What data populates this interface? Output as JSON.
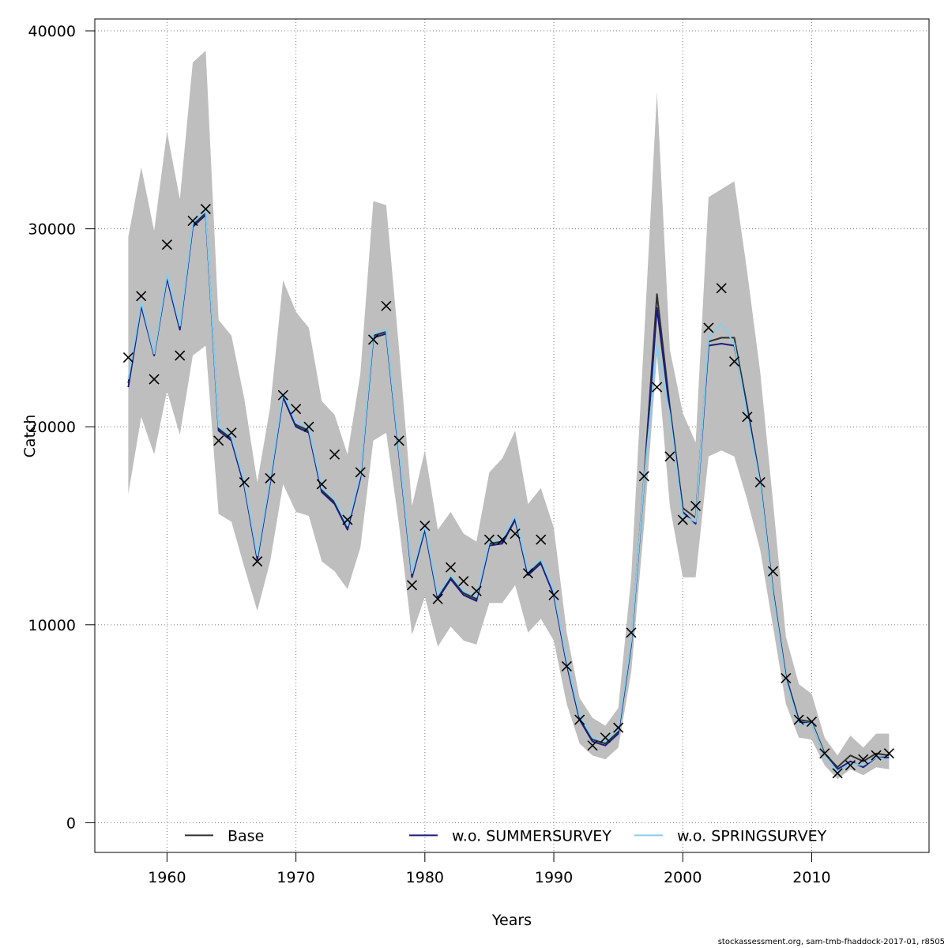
{
  "chart_data": {
    "type": "line",
    "xlabel": "Years",
    "ylabel": "Catch",
    "xlim": [
      1954.4,
      2019.1
    ],
    "ylim": [
      -1500,
      40600
    ],
    "x_ticks": [
      1960,
      1970,
      1980,
      1990,
      2000,
      2010
    ],
    "x_tick_labels": [
      "1960",
      "1970",
      "1980",
      "1990",
      "2000",
      "2010"
    ],
    "y_ticks": [
      0,
      10000,
      20000,
      30000,
      40000
    ],
    "y_tick_labels": [
      "0",
      "10000",
      "20000",
      "30000",
      "40000"
    ],
    "grid": true,
    "legend_position": "bottom",
    "colors": {
      "band": "#bebebe",
      "base": "#303030",
      "summer": "#1c1c7e",
      "spring": "#87ceeb",
      "observed": "#000000"
    },
    "years": [
      1957,
      1958,
      1959,
      1960,
      1961,
      1962,
      1963,
      1964,
      1965,
      1966,
      1967,
      1968,
      1969,
      1970,
      1971,
      1972,
      1973,
      1974,
      1975,
      1976,
      1977,
      1978,
      1979,
      1980,
      1981,
      1982,
      1983,
      1984,
      1985,
      1986,
      1987,
      1988,
      1989,
      1990,
      1991,
      1992,
      1993,
      1994,
      1995,
      1996,
      1997,
      1998,
      1999,
      2000,
      2001,
      2002,
      2003,
      2004,
      2005,
      2006,
      2007,
      2008,
      2009,
      2010,
      2011,
      2012,
      2013,
      2014,
      2015,
      2016
    ],
    "ci_upper": [
      29600,
      33100,
      29900,
      34900,
      31500,
      38400,
      39000,
      25400,
      24600,
      21400,
      17200,
      21000,
      27400,
      25800,
      25000,
      21300,
      20600,
      18600,
      22700,
      31400,
      31200,
      23900,
      16000,
      18800,
      14800,
      15700,
      14600,
      14200,
      17700,
      18400,
      19800,
      16100,
      16900,
      14900,
      9600,
      6300,
      5300,
      4900,
      5800,
      12400,
      24500,
      36900,
      23900,
      20700,
      19200,
      31600,
      32000,
      32400,
      27800,
      22800,
      16200,
      9400,
      7000,
      6500,
      4300,
      3400,
      4400,
      3800,
      4500,
      4500
    ],
    "ci_lower": [
      16600,
      20500,
      18600,
      21800,
      19600,
      23600,
      24100,
      15600,
      15200,
      12900,
      10700,
      13200,
      17100,
      15700,
      15500,
      13200,
      12700,
      11800,
      13900,
      19300,
      19700,
      15000,
      9500,
      11400,
      8900,
      9900,
      9200,
      9000,
      11100,
      11100,
      12000,
      9600,
      10300,
      9200,
      6000,
      4000,
      3400,
      3200,
      3800,
      7600,
      15000,
      23600,
      16000,
      12400,
      12400,
      18500,
      18800,
      18500,
      16300,
      13800,
      9900,
      6000,
      4300,
      4200,
      2900,
      2200,
      2700,
      2400,
      2800,
      2700
    ],
    "observed": [
      23500,
      26600,
      22400,
      29200,
      23600,
      30400,
      31000,
      19300,
      19700,
      17200,
      13200,
      17400,
      21600,
      20900,
      20000,
      17100,
      18600,
      15300,
      17700,
      24400,
      26100,
      19300,
      12000,
      15000,
      11300,
      12900,
      12200,
      11700,
      14300,
      14300,
      14600,
      12600,
      14300,
      11500,
      7900,
      5200,
      3900,
      4300,
      4800,
      9600,
      17500,
      22000,
      18500,
      15300,
      16000,
      25000,
      27000,
      23300,
      20500,
      17200,
      12700,
      7300,
      5200,
      5100,
      3500,
      2500,
      2900,
      3200,
      3400,
      3500
    ],
    "series": [
      {
        "name": "Base",
        "values": [
          22200,
          26200,
          23600,
          27600,
          25000,
          30200,
          30800,
          19900,
          19400,
          17100,
          13400,
          17300,
          21600,
          20100,
          19800,
          16800,
          16200,
          14900,
          17500,
          24600,
          24800,
          18700,
          12500,
          14900,
          11400,
          12400,
          11600,
          11300,
          14100,
          14200,
          15400,
          12600,
          13200,
          11600,
          8100,
          5300,
          4200,
          4000,
          4600,
          9100,
          17400,
          26700,
          21000,
          15900,
          15400,
          24300,
          24500,
          24500,
          21000,
          17300,
          11700,
          7400,
          5200,
          5100,
          3500,
          2800,
          3400,
          3100,
          3500,
          3400
        ]
      },
      {
        "name": "w.o. SUMMERSURVEY",
        "values": [
          22000,
          26100,
          23600,
          27500,
          24900,
          30100,
          30700,
          19800,
          19300,
          17000,
          13300,
          17200,
          21500,
          20000,
          19700,
          16700,
          16100,
          14800,
          17400,
          24500,
          24700,
          18600,
          12400,
          14800,
          11300,
          12300,
          11500,
          11200,
          14000,
          14100,
          15300,
          12500,
          13100,
          11500,
          8000,
          5200,
          4100,
          3900,
          4500,
          9000,
          17200,
          26000,
          20800,
          15700,
          15100,
          24100,
          24200,
          24100,
          20800,
          17200,
          11600,
          7300,
          5100,
          5000,
          3400,
          2700,
          3100,
          2800,
          3300,
          3300
        ]
      },
      {
        "name": "w.o. SPRINGSURVEY",
        "values": [
          22400,
          26300,
          23700,
          27700,
          25100,
          30300,
          30900,
          20000,
          19500,
          17200,
          13500,
          17400,
          21700,
          20200,
          19900,
          16900,
          16300,
          15000,
          17600,
          24700,
          24900,
          18800,
          12600,
          15000,
          11500,
          12500,
          11700,
          11400,
          14200,
          14300,
          15500,
          12700,
          13300,
          11700,
          8200,
          5400,
          4300,
          4100,
          4700,
          9200,
          17300,
          24100,
          20600,
          15500,
          15200,
          24500,
          25200,
          24200,
          20600,
          17100,
          11500,
          7200,
          5000,
          5000,
          3400,
          2600,
          3000,
          2900,
          3300,
          3200
        ]
      }
    ]
  },
  "footer": "stockassessment.org, sam-tmb-fhaddock-2017-01, r8505"
}
